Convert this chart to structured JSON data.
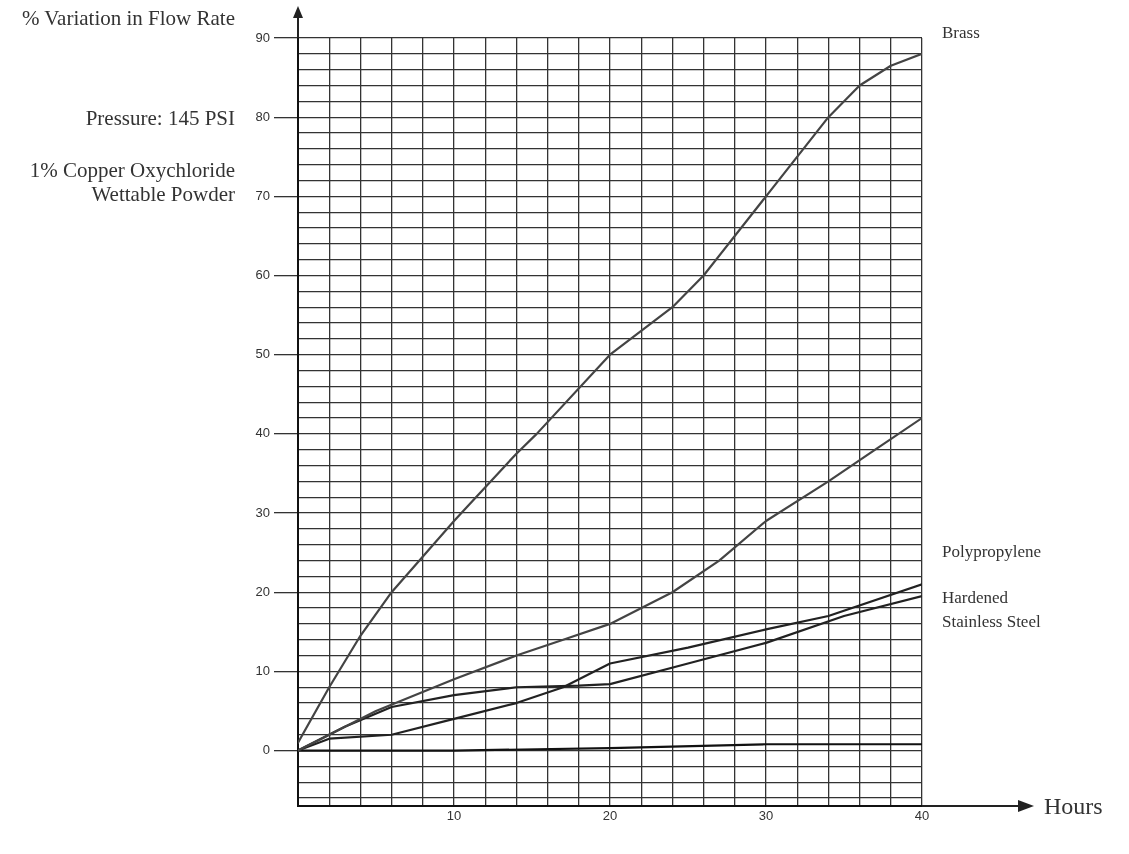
{
  "chart_data": {
    "type": "line",
    "ylabel": "% Variation in Flow Rate",
    "xlabel": "Hours",
    "annotations": [
      "Pressure: 145 PSI",
      "1% Copper Oxychloride Wettable Powder"
    ],
    "xlim": [
      0,
      40
    ],
    "xticks": [
      {
        "value": 0,
        "label": null
      },
      {
        "value": 2,
        "label": null
      },
      {
        "value": 4,
        "label": null
      },
      {
        "value": 6,
        "label": null
      },
      {
        "value": 8,
        "label": null
      },
      10,
      {
        "value": 12,
        "label": null
      },
      {
        "value": 14,
        "label": null
      },
      {
        "value": 16,
        "label": null
      },
      {
        "value": 18,
        "label": null
      },
      20,
      {
        "value": 22,
        "label": null
      },
      {
        "value": 24,
        "label": null
      },
      {
        "value": 26,
        "label": null
      },
      {
        "value": 28,
        "label": null
      },
      30,
      {
        "value": 32,
        "label": null
      },
      {
        "value": 34,
        "label": null
      },
      {
        "value": 36,
        "label": null
      },
      {
        "value": 38,
        "label": null
      },
      40
    ],
    "ylim": [
      -7,
      90
    ],
    "yticks": [
      {
        "value": -6,
        "label": null
      },
      {
        "value": -4,
        "label": null
      },
      {
        "value": -2,
        "label": null
      },
      0,
      {
        "value": 2,
        "label": null
      },
      {
        "value": 4,
        "label": null
      },
      {
        "value": 6,
        "label": null
      },
      {
        "value": 8,
        "label": null
      },
      10,
      {
        "value": 12,
        "label": null
      },
      {
        "value": 14,
        "label": null
      },
      {
        "value": 16,
        "label": null
      },
      {
        "value": 18,
        "label": null
      },
      20,
      {
        "value": 22,
        "label": null
      },
      {
        "value": 24,
        "label": null
      },
      {
        "value": 26,
        "label": null
      },
      {
        "value": 28,
        "label": null
      },
      30,
      {
        "value": 32,
        "label": null
      },
      {
        "value": 34,
        "label": null
      },
      {
        "value": 36,
        "label": null
      },
      {
        "value": 38,
        "label": null
      },
      40,
      {
        "value": 42,
        "label": null
      },
      {
        "value": 44,
        "label": null
      },
      {
        "value": 46,
        "label": null
      },
      {
        "value": 48,
        "label": null
      },
      50,
      {
        "value": 52,
        "label": null
      },
      {
        "value": 54,
        "label": null
      },
      {
        "value": 56,
        "label": null
      },
      {
        "value": 58,
        "label": null
      },
      60,
      {
        "value": 62,
        "label": null
      },
      {
        "value": 64,
        "label": null
      },
      {
        "value": 66,
        "label": null
      },
      {
        "value": 68,
        "label": null
      },
      70,
      {
        "value": 72,
        "label": null
      },
      {
        "value": 74,
        "label": null
      },
      {
        "value": 76,
        "label": null
      },
      {
        "value": 78,
        "label": null
      },
      80,
      {
        "value": 82,
        "label": null
      },
      {
        "value": 84,
        "label": null
      },
      {
        "value": 86,
        "label": null
      },
      {
        "value": 88,
        "label": null
      },
      90
    ],
    "grid": true,
    "marker": "none",
    "line_style": "solid",
    "legend": false,
    "series": [
      {
        "name": "Brass",
        "color": "#444444",
        "x": [
          0,
          2,
          4,
          6,
          10,
          14,
          15.3,
          20,
          24,
          26,
          30,
          34,
          36,
          38,
          40
        ],
        "values": [
          1,
          8,
          14.5,
          20,
          29,
          37.5,
          40,
          50,
          56,
          60,
          70,
          80,
          84,
          86.5,
          88
        ]
      },
      {
        "color": "#444444",
        "x": [
          0,
          2,
          5,
          10,
          14,
          17,
          20,
          24,
          27,
          30,
          34,
          37,
          40
        ],
        "values": [
          0,
          2,
          5,
          9,
          12,
          14,
          16,
          20,
          24,
          29,
          34,
          38,
          42
        ]
      },
      {
        "name": "Polypropylene",
        "color": "#222222",
        "x": [
          0,
          2,
          6,
          10,
          14,
          17,
          20,
          25,
          30,
          34,
          40
        ],
        "values": [
          0,
          1.5,
          2,
          4,
          6,
          8,
          11,
          13,
          15.3,
          17,
          21
        ]
      },
      {
        "name": "Hardened Stainless Steel",
        "color": "#222222",
        "x": [
          0,
          3,
          6,
          10,
          14,
          18,
          20,
          25,
          30,
          35,
          40
        ],
        "values": [
          0,
          3,
          5.5,
          7,
          8,
          8.2,
          8.4,
          11,
          13.6,
          17,
          19.5
        ]
      },
      {
        "color": "#111111",
        "x": [
          0,
          10,
          20,
          30,
          40
        ],
        "values": [
          0,
          0,
          0.3,
          0.8,
          0.8
        ]
      }
    ]
  }
}
